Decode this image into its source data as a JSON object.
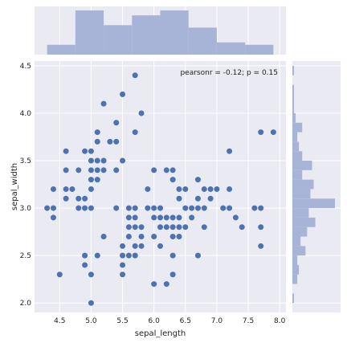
{
  "chart_data": {
    "type": "scatter",
    "xlabel": "sepal_length",
    "ylabel": "sepal_width",
    "xlim": [
      4.1,
      8.1
    ],
    "ylim": [
      1.9,
      4.55
    ],
    "x_ticks": [
      4.5,
      5.0,
      5.5,
      6.0,
      6.5,
      7.0,
      7.5,
      8.0
    ],
    "x_tick_labels": [
      "4.5",
      "5.0",
      "5.5",
      "6.0",
      "6.5",
      "7.0",
      "7.5",
      "8.0"
    ],
    "y_ticks": [
      2.0,
      2.5,
      3.0,
      3.5,
      4.0,
      4.5
    ],
    "y_tick_labels": [
      "2.0",
      "2.5",
      "3.0",
      "3.5",
      "4.0",
      "4.5"
    ],
    "annotation": "pearsonr = -0.12; p = 0.15",
    "grid": true,
    "colors": {
      "points": "#4C72B0",
      "marginal_hist": "#A7B4D8",
      "background": "#EAEAF2"
    },
    "points": [
      [
        4.3,
        3.0
      ],
      [
        4.4,
        2.9
      ],
      [
        4.4,
        3.0
      ],
      [
        4.4,
        3.2
      ],
      [
        4.5,
        2.3
      ],
      [
        4.6,
        3.1
      ],
      [
        4.6,
        3.2
      ],
      [
        4.6,
        3.4
      ],
      [
        4.6,
        3.6
      ],
      [
        4.7,
        3.2
      ],
      [
        4.8,
        3.0
      ],
      [
        4.8,
        3.1
      ],
      [
        4.8,
        3.4
      ],
      [
        4.9,
        2.4
      ],
      [
        4.9,
        2.5
      ],
      [
        4.9,
        3.0
      ],
      [
        4.9,
        3.1
      ],
      [
        4.9,
        3.6
      ],
      [
        5.0,
        2.0
      ],
      [
        5.0,
        2.3
      ],
      [
        5.0,
        3.0
      ],
      [
        5.0,
        3.2
      ],
      [
        5.0,
        3.3
      ],
      [
        5.0,
        3.4
      ],
      [
        5.0,
        3.5
      ],
      [
        5.0,
        3.6
      ],
      [
        5.1,
        2.5
      ],
      [
        5.1,
        3.3
      ],
      [
        5.1,
        3.4
      ],
      [
        5.1,
        3.5
      ],
      [
        5.1,
        3.7
      ],
      [
        5.1,
        3.8
      ],
      [
        5.2,
        2.7
      ],
      [
        5.2,
        3.4
      ],
      [
        5.2,
        3.5
      ],
      [
        5.2,
        4.1
      ],
      [
        5.3,
        3.7
      ],
      [
        5.4,
        3.0
      ],
      [
        5.4,
        3.4
      ],
      [
        5.4,
        3.7
      ],
      [
        5.4,
        3.9
      ],
      [
        5.5,
        2.3
      ],
      [
        5.5,
        2.4
      ],
      [
        5.5,
        2.5
      ],
      [
        5.5,
        2.6
      ],
      [
        5.5,
        3.5
      ],
      [
        5.5,
        4.2
      ],
      [
        5.6,
        2.5
      ],
      [
        5.6,
        2.7
      ],
      [
        5.6,
        2.8
      ],
      [
        5.6,
        2.9
      ],
      [
        5.6,
        3.0
      ],
      [
        5.7,
        2.5
      ],
      [
        5.7,
        2.6
      ],
      [
        5.7,
        2.8
      ],
      [
        5.7,
        2.9
      ],
      [
        5.7,
        3.0
      ],
      [
        5.7,
        3.8
      ],
      [
        5.7,
        4.4
      ],
      [
        5.8,
        2.6
      ],
      [
        5.8,
        2.7
      ],
      [
        5.8,
        2.8
      ],
      [
        5.8,
        4.0
      ],
      [
        5.9,
        3.0
      ],
      [
        5.9,
        3.2
      ],
      [
        6.0,
        2.2
      ],
      [
        6.0,
        2.7
      ],
      [
        6.0,
        2.9
      ],
      [
        6.0,
        3.0
      ],
      [
        6.0,
        3.4
      ],
      [
        6.1,
        2.6
      ],
      [
        6.1,
        2.8
      ],
      [
        6.1,
        2.9
      ],
      [
        6.1,
        3.0
      ],
      [
        6.2,
        2.2
      ],
      [
        6.2,
        2.8
      ],
      [
        6.2,
        2.9
      ],
      [
        6.2,
        3.4
      ],
      [
        6.3,
        2.3
      ],
      [
        6.3,
        2.5
      ],
      [
        6.3,
        2.7
      ],
      [
        6.3,
        2.8
      ],
      [
        6.3,
        2.9
      ],
      [
        6.3,
        3.3
      ],
      [
        6.3,
        3.4
      ],
      [
        6.4,
        2.7
      ],
      [
        6.4,
        2.8
      ],
      [
        6.4,
        2.9
      ],
      [
        6.4,
        3.1
      ],
      [
        6.4,
        3.2
      ],
      [
        6.5,
        2.8
      ],
      [
        6.5,
        3.0
      ],
      [
        6.5,
        3.2
      ],
      [
        6.6,
        2.9
      ],
      [
        6.6,
        3.0
      ],
      [
        6.7,
        2.5
      ],
      [
        6.7,
        3.0
      ],
      [
        6.7,
        3.1
      ],
      [
        6.7,
        3.3
      ],
      [
        6.8,
        2.8
      ],
      [
        6.8,
        3.0
      ],
      [
        6.8,
        3.2
      ],
      [
        6.9,
        3.1
      ],
      [
        6.9,
        3.2
      ],
      [
        7.0,
        3.2
      ],
      [
        7.1,
        3.0
      ],
      [
        7.2,
        3.0
      ],
      [
        7.2,
        3.2
      ],
      [
        7.2,
        3.6
      ],
      [
        7.3,
        2.9
      ],
      [
        7.4,
        2.8
      ],
      [
        7.6,
        3.0
      ],
      [
        7.7,
        2.6
      ],
      [
        7.7,
        2.8
      ],
      [
        7.7,
        3.0
      ],
      [
        7.7,
        3.8
      ],
      [
        7.9,
        3.8
      ]
    ],
    "marginal_x": {
      "type": "histogram",
      "bins": [
        [
          4.3,
          4.75,
          4
        ],
        [
          4.75,
          5.2,
          18
        ],
        [
          5.2,
          5.65,
          12
        ],
        [
          5.65,
          6.1,
          16
        ],
        [
          6.1,
          6.55,
          18
        ],
        [
          6.55,
          7.0,
          11
        ],
        [
          7.0,
          7.45,
          5
        ],
        [
          7.45,
          7.9,
          4
        ]
      ]
    },
    "marginal_y": {
      "type": "histogram",
      "bins": [
        [
          2.0,
          2.1,
          1
        ],
        [
          2.2,
          2.3,
          3
        ],
        [
          2.3,
          2.4,
          4
        ],
        [
          2.4,
          2.5,
          3
        ],
        [
          2.5,
          2.6,
          8
        ],
        [
          2.6,
          2.7,
          5
        ],
        [
          2.7,
          2.8,
          9
        ],
        [
          2.8,
          2.9,
          14
        ],
        [
          2.9,
          3.0,
          10
        ],
        [
          3.0,
          3.1,
          26
        ],
        [
          3.1,
          3.2,
          11
        ],
        [
          3.2,
          3.3,
          13
        ],
        [
          3.3,
          3.4,
          6
        ],
        [
          3.4,
          3.5,
          12
        ],
        [
          3.5,
          3.6,
          6
        ],
        [
          3.6,
          3.7,
          4
        ],
        [
          3.7,
          3.8,
          3
        ],
        [
          3.8,
          3.9,
          6
        ],
        [
          3.9,
          4.0,
          2
        ],
        [
          4.0,
          4.1,
          1
        ],
        [
          4.1,
          4.2,
          1
        ],
        [
          4.2,
          4.3,
          1
        ],
        [
          4.4,
          4.5,
          1
        ]
      ]
    }
  }
}
